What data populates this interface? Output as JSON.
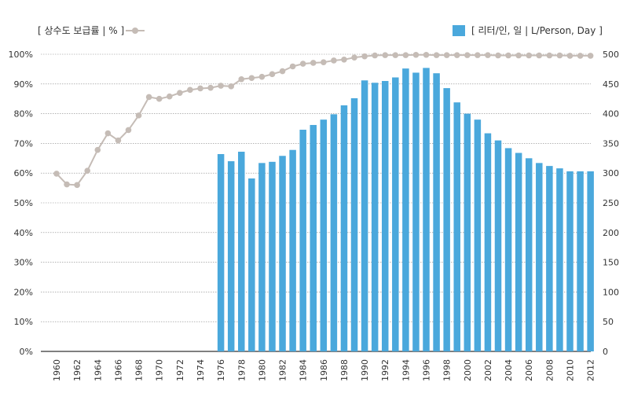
{
  "chart_data": {
    "type": "bar+line",
    "legend_left": {
      "label": "[ 상수도 보급률 | % ]",
      "marker": "line-circle"
    },
    "legend_right": {
      "label": "[ 리터/인, 일 | L/Person, Day ]",
      "marker": "square"
    },
    "colors": {
      "bar": "#4aa8dc",
      "line": "#c5bcb6",
      "grid": "#888888",
      "axis": "#333333"
    },
    "y_left": {
      "min": 0,
      "max": 100,
      "step": 10,
      "tick_labels": [
        "0%",
        "10%",
        "20%",
        "30%",
        "40%",
        "50%",
        "60%",
        "70%",
        "80%",
        "90%",
        "100%"
      ]
    },
    "y_right": {
      "min": 0,
      "max": 500,
      "step": 50,
      "tick_labels": [
        "0",
        "50",
        "100",
        "150",
        "200",
        "250",
        "300",
        "350",
        "400",
        "450",
        "500"
      ]
    },
    "x_tick_labels": [
      "1960",
      "1962",
      "1964",
      "1966",
      "1968",
      "1970",
      "1972",
      "1974",
      "1976",
      "1978",
      "1980",
      "1982",
      "1984",
      "1986",
      "1988",
      "1990",
      "1992",
      "1994",
      "1996",
      "1998",
      "2000",
      "2002",
      "2004",
      "2006",
      "2008",
      "2010",
      "2012"
    ],
    "x_years_start": 1960,
    "x_years_end": 2012,
    "series": [
      {
        "name": "상수도 보급률",
        "kind": "line",
        "axis": "left",
        "x": [
          1960,
          1961,
          1962,
          1963,
          1964,
          1965,
          1966,
          1967,
          1968,
          1969,
          1970,
          1971,
          1972,
          1973,
          1974,
          1975,
          1976,
          1977,
          1978,
          1979,
          1980,
          1981,
          1982,
          1983,
          1984,
          1985,
          1986,
          1987,
          1988,
          1989,
          1990,
          1991,
          1992,
          1993,
          1994,
          1995,
          1996,
          1997,
          1998,
          1999,
          2000,
          2001,
          2002,
          2003,
          2004,
          2005,
          2006,
          2007,
          2008,
          2009,
          2010,
          2011,
          2012
        ],
        "values": [
          59.8,
          56.2,
          56.0,
          60.8,
          67.8,
          73.4,
          71.0,
          74.5,
          79.4,
          85.6,
          85.0,
          85.8,
          87.0,
          88.0,
          88.5,
          88.7,
          89.4,
          89.2,
          91.6,
          92.0,
          92.4,
          93.3,
          94.3,
          95.9,
          96.8,
          97.1,
          97.3,
          97.9,
          98.2,
          98.9,
          99.3,
          99.6,
          99.7,
          99.7,
          99.7,
          99.8,
          99.8,
          99.7,
          99.7,
          99.7,
          99.7,
          99.7,
          99.7,
          99.6,
          99.6,
          99.6,
          99.6,
          99.6,
          99.6,
          99.6,
          99.5,
          99.5,
          99.5
        ]
      },
      {
        "name": "리터/인, 일",
        "kind": "bar",
        "axis": "right",
        "x": [
          1976,
          1977,
          1978,
          1979,
          1980,
          1981,
          1982,
          1983,
          1984,
          1985,
          1986,
          1987,
          1988,
          1989,
          1990,
          1991,
          1992,
          1993,
          1994,
          1995,
          1996,
          1997,
          1998,
          1999,
          2000,
          2001,
          2002,
          2003,
          2004,
          2005,
          2006,
          2007,
          2008,
          2009,
          2010,
          2011,
          2012
        ],
        "values": [
          332,
          320,
          336,
          291,
          317,
          319,
          329,
          339,
          373,
          381,
          390,
          399,
          414,
          426,
          456,
          452,
          455,
          461,
          476,
          469,
          477,
          468,
          443,
          419,
          400,
          390,
          367,
          355,
          342,
          334,
          325,
          317,
          312,
          308,
          303,
          303,
          303
        ]
      }
    ]
  }
}
